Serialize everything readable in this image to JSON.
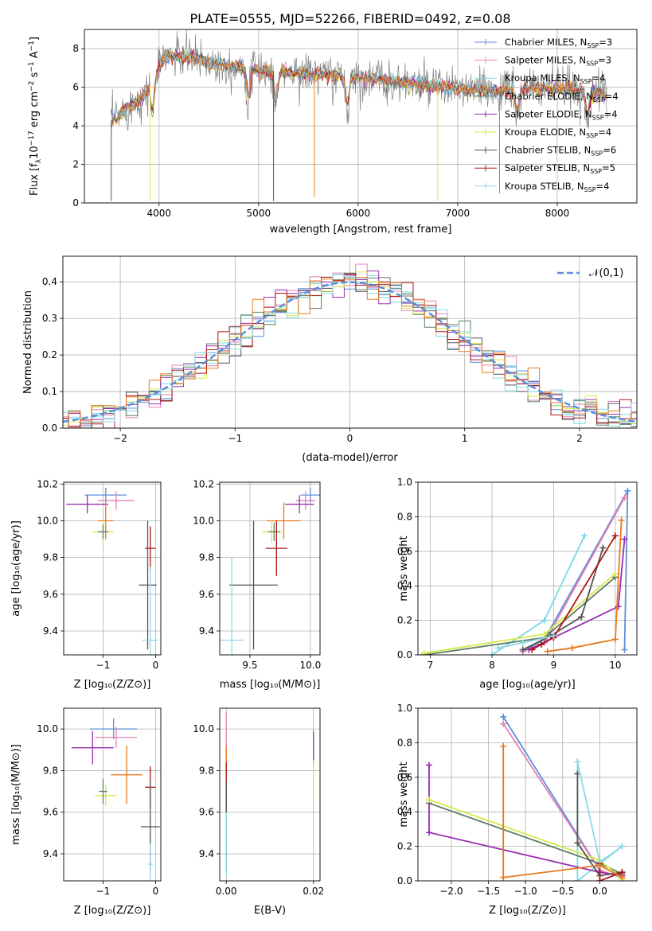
{
  "figure": {
    "title": "PLATE=0555, MJD=52266, FIBERID=0492, z=0.08"
  },
  "colors": {
    "Chabrier MILES": "#5b8fd8",
    "Salpeter MILES": "#e580b5",
    "Kroupa MILES": "#7ad9e3",
    "Chabrier ELODIE": "#5f7f62",
    "Salpeter ELODIE": "#9a2fb0",
    "Kroupa ELODIE": "#d6ea4a",
    "Chabrier STELIB": "#555555",
    "Salpeter STELIB": "#b01515",
    "Kroupa STELIB": "#8fd9e6",
    "Extra": "#e87a1c",
    "normal_curve": "#5b8fd8",
    "grid": "#b0b0b0"
  },
  "chart_data": [
    {
      "type": "line",
      "panel": "spectrum",
      "xlabel": "wavelength [Angstrom, rest frame]",
      "ylabel_pre": "Flux [f",
      "ylabel_sub": "λ",
      "ylabel_mid": "10",
      "ylabel_sup1": "−17",
      "ylabel_unit1": " erg cm",
      "ylabel_sup2": "−2",
      "ylabel_unit2": " s",
      "ylabel_sup3": "−1",
      "ylabel_unit3": " A",
      "ylabel_sup4": "−1",
      "ylabel_post": "]",
      "xlim": [
        3250,
        8800
      ],
      "ylim": [
        0,
        9
      ],
      "xticks": [
        4000,
        5000,
        6000,
        7000,
        8000
      ],
      "yticks": [
        0,
        2,
        4,
        6,
        8
      ],
      "continuum": [
        [
          3520,
          4.3
        ],
        [
          3700,
          5.0
        ],
        [
          3850,
          5.6
        ],
        [
          3950,
          6.4
        ],
        [
          4050,
          7.6
        ],
        [
          4300,
          7.6
        ],
        [
          4600,
          7.2
        ],
        [
          5000,
          6.9
        ],
        [
          5500,
          6.7
        ],
        [
          6000,
          6.5
        ],
        [
          6500,
          6.2
        ],
        [
          7000,
          5.9
        ],
        [
          7400,
          5.8
        ],
        [
          7800,
          6.0
        ],
        [
          8200,
          5.9
        ],
        [
          8500,
          5.6
        ]
      ],
      "dips": [
        [
          3935,
          1.5
        ],
        [
          4900,
          5.0
        ],
        [
          5175,
          4.7
        ],
        [
          5890,
          5.5
        ],
        [
          7600,
          5.3
        ],
        [
          8300,
          5.2
        ]
      ],
      "spikes": [
        [
          3520,
          0.1
        ],
        [
          3910,
          0.1
        ],
        [
          5150,
          0.1
        ],
        [
          5560,
          0.3
        ],
        [
          6800,
          0.1
        ],
        [
          7420,
          0.5
        ]
      ],
      "legend": [
        {
          "name": "Chabrier MILES",
          "sub": "SSP",
          "n": "=3"
        },
        {
          "name": "Salpeter MILES",
          "sub": "SSP",
          "n": "=3"
        },
        {
          "name": "Kroupa MILES",
          "sub": "SSP",
          "n": "=4"
        },
        {
          "name": "Chabrier ELODIE",
          "sub": "SSP",
          "n": "=4"
        },
        {
          "name": "Salpeter ELODIE",
          "sub": "SSP",
          "n": "=4"
        },
        {
          "name": "Kroupa ELODIE",
          "sub": "SSP",
          "n": "=4"
        },
        {
          "name": "Chabrier STELIB",
          "sub": "SSP",
          "n": "=6"
        },
        {
          "name": "Salpeter STELIB",
          "sub": "SSP",
          "n": "=5"
        },
        {
          "name": "Kroupa STELIB",
          "sub": "SSP",
          "n": "=4"
        }
      ]
    },
    {
      "type": "histogram",
      "panel": "residuals",
      "xlabel": "(data-model)/error",
      "ylabel": "Normed distribution",
      "xlim": [
        -2.5,
        2.5
      ],
      "ylim": [
        0,
        0.47
      ],
      "xticks": [
        -2,
        -1,
        0,
        1,
        2
      ],
      "yticks": [
        0.0,
        0.1,
        0.2,
        0.3,
        0.4
      ],
      "bin_width": 0.1,
      "legend": {
        "label": "𝒩(0,1)"
      }
    },
    {
      "type": "scatter",
      "panel": "Z-age",
      "xlabel": "Z [log₁₀(Z/Z⊙)]",
      "ylabel": "age  [log₁₀(age/yr)]",
      "xlim": [
        -1.75,
        0.1
      ],
      "ylim": [
        9.27,
        10.21
      ],
      "xticks": [
        -1,
        0
      ],
      "yticks": [
        9.4,
        9.6,
        9.8,
        10.0,
        10.2
      ],
      "points": [
        {
          "series": "Chabrier MILES",
          "x": -0.95,
          "y": 10.14,
          "xerr": 0.4,
          "yerr": 0.04
        },
        {
          "series": "Salpeter MILES",
          "x": -0.75,
          "y": 10.11,
          "xerr": 0.35,
          "yerr": 0.05
        },
        {
          "series": "Salpeter ELODIE",
          "x": -1.3,
          "y": 10.09,
          "xerr": 0.4,
          "yerr": 0.05
        },
        {
          "series": "Extra",
          "x": -0.95,
          "y": 10.0,
          "xerr": 0.15,
          "yerr": 0.1
        },
        {
          "series": "Kroupa ELODIE",
          "x": -1.0,
          "y": 9.94,
          "xerr": 0.2,
          "yerr": 0.06
        },
        {
          "series": "Chabrier ELODIE",
          "x": -1.0,
          "y": 9.94,
          "xerr": 0.1,
          "yerr": 0.04
        },
        {
          "series": "Salpeter STELIB",
          "x": -0.1,
          "y": 9.85,
          "xerr": 0.1,
          "yerr": 0.12
        },
        {
          "series": "Chabrier STELIB",
          "x": -0.15,
          "y": 9.65,
          "xerr": 0.17,
          "yerr": 0.35
        },
        {
          "series": "Kroupa STELIB",
          "x": -0.1,
          "y": 9.35,
          "xerr": 0.15,
          "yerr": 0.4
        }
      ]
    },
    {
      "type": "scatter",
      "panel": "mass-age",
      "xlabel": "mass [log₁₀(M/M⊙)]",
      "ylabel": "",
      "xlim": [
        9.25,
        10.08
      ],
      "ylim": [
        9.27,
        10.21
      ],
      "xticks": [
        9.5,
        10.0
      ],
      "yticks": [
        9.4,
        9.6,
        9.8,
        10.0,
        10.2
      ],
      "points": [
        {
          "series": "Chabrier MILES",
          "x": 10.0,
          "y": 10.14,
          "xerr": 0.08,
          "yerr": 0.04
        },
        {
          "series": "Salpeter MILES",
          "x": 9.96,
          "y": 10.11,
          "xerr": 0.08,
          "yerr": 0.05
        },
        {
          "series": "Salpeter ELODIE",
          "x": 9.91,
          "y": 10.09,
          "xerr": 0.12,
          "yerr": 0.05
        },
        {
          "series": "Extra",
          "x": 9.78,
          "y": 10.0,
          "xerr": 0.14,
          "yerr": 0.1
        },
        {
          "series": "Kroupa ELODIE",
          "x": 9.68,
          "y": 9.94,
          "xerr": 0.08,
          "yerr": 0.06
        },
        {
          "series": "Chabrier ELODIE",
          "x": 9.7,
          "y": 9.94,
          "xerr": 0.05,
          "yerr": 0.05
        },
        {
          "series": "Salpeter STELIB",
          "x": 9.72,
          "y": 9.85,
          "xerr": 0.09,
          "yerr": 0.15
        },
        {
          "series": "Chabrier STELIB",
          "x": 9.53,
          "y": 9.65,
          "xerr": 0.2,
          "yerr": 0.35
        },
        {
          "series": "Kroupa STELIB",
          "x": 9.35,
          "y": 9.35,
          "xerr": 0.1,
          "yerr": 0.45
        }
      ]
    },
    {
      "type": "line",
      "panel": "age-weight",
      "xlabel": "age  [log₁₀(age/yr)]",
      "ylabel": "mass weight",
      "xlim": [
        6.8,
        10.35
      ],
      "ylim": [
        0,
        1.0
      ],
      "xticks": [
        7,
        8,
        9,
        10
      ],
      "yticks": [
        0.0,
        0.2,
        0.4,
        0.6,
        0.8,
        1.0
      ],
      "series": [
        {
          "name": "Chabrier MILES",
          "x": [
            8.5,
            8.85,
            10.2,
            10.15
          ],
          "y": [
            0.02,
            0.09,
            0.95,
            0.03
          ]
        },
        {
          "name": "Salpeter MILES",
          "x": [
            8.5,
            8.85,
            10.15
          ],
          "y": [
            0.02,
            0.07,
            0.91
          ]
        },
        {
          "name": "Kroupa MILES",
          "x": [
            8.0,
            8.85,
            9.5
          ],
          "y": [
            0.0,
            0.2,
            0.69
          ]
        },
        {
          "name": "Chabrier ELODIE",
          "x": [
            6.9,
            8.85,
            10.0
          ],
          "y": [
            0.0,
            0.1,
            0.45
          ]
        },
        {
          "name": "Salpeter ELODIE",
          "x": [
            8.6,
            9.0,
            10.05,
            10.15
          ],
          "y": [
            0.03,
            0.1,
            0.28,
            0.67
          ]
        },
        {
          "name": "Kroupa ELODIE",
          "x": [
            6.9,
            8.85,
            10.0
          ],
          "y": [
            0.01,
            0.12,
            0.47
          ]
        },
        {
          "name": "Chabrier STELIB",
          "x": [
            8.5,
            8.95,
            9.45,
            9.8
          ],
          "y": [
            0.03,
            0.11,
            0.22,
            0.62
          ]
        },
        {
          "name": "Salpeter STELIB",
          "x": [
            8.65,
            8.8,
            9.0,
            10.0
          ],
          "y": [
            0.03,
            0.06,
            0.1,
            0.69
          ]
        },
        {
          "name": "Kroupa STELIB",
          "x": [
            8.1,
            8.5,
            9.0
          ],
          "y": [
            0.04,
            0.07,
            0.11
          ]
        },
        {
          "name": "Extra",
          "x": [
            8.9,
            9.3,
            10.0,
            10.1
          ],
          "y": [
            0.02,
            0.04,
            0.09,
            0.78
          ]
        }
      ]
    },
    {
      "type": "scatter",
      "panel": "Z-mass",
      "xlabel": "Z [log₁₀(Z/Z⊙)]",
      "ylabel": "mass [log₁₀(M/M⊙)]",
      "xlim": [
        -1.75,
        0.1
      ],
      "ylim": [
        9.27,
        10.1
      ],
      "xticks": [
        -1,
        0
      ],
      "yticks": [
        9.4,
        9.6,
        9.8,
        10.0
      ],
      "points": [
        {
          "series": "Chabrier MILES",
          "x": -0.8,
          "y": 10.0,
          "xerr": 0.45,
          "yerr": 0.05
        },
        {
          "series": "Salpeter MILES",
          "x": -0.75,
          "y": 9.96,
          "xerr": 0.4,
          "yerr": 0.05
        },
        {
          "series": "Salpeter ELODIE",
          "x": -1.2,
          "y": 9.91,
          "xerr": 0.4,
          "yerr": 0.08
        },
        {
          "series": "Extra",
          "x": -0.55,
          "y": 9.78,
          "xerr": 0.3,
          "yerr": 0.14
        },
        {
          "series": "Kroupa ELODIE",
          "x": -0.95,
          "y": 9.68,
          "xerr": 0.2,
          "yerr": 0.05
        },
        {
          "series": "Chabrier ELODIE",
          "x": -1.0,
          "y": 9.7,
          "xerr": 0.08,
          "yerr": 0.06
        },
        {
          "series": "Salpeter STELIB",
          "x": -0.1,
          "y": 9.72,
          "xerr": 0.1,
          "yerr": 0.1
        },
        {
          "series": "Chabrier STELIB",
          "x": -0.1,
          "y": 9.53,
          "xerr": 0.18,
          "yerr": 0.22
        },
        {
          "series": "Kroupa STELIB",
          "x": -0.1,
          "y": 9.35,
          "xerr": 0.05,
          "yerr": 0.1
        }
      ]
    },
    {
      "type": "scatter",
      "panel": "EBV-mass",
      "xlabel": "E(B-V)",
      "ylabel": "",
      "xlim": [
        -0.0015,
        0.0215
      ],
      "ylim": [
        9.27,
        10.1
      ],
      "xticks": [
        0.0,
        0.02
      ],
      "xticklabels": [
        "0.00",
        "0.02"
      ],
      "yticks": [
        9.4,
        9.6,
        9.8,
        10.0
      ],
      "points": [
        {
          "series": "Salpeter MILES",
          "x": 0.0,
          "y": 9.96,
          "xerr": 0,
          "yerr": 0.12
        },
        {
          "series": "Extra",
          "x": 0.0,
          "y": 9.78,
          "xerr": 0,
          "yerr": 0.14
        },
        {
          "series": "Salpeter STELIB",
          "x": 0.0,
          "y": 9.72,
          "xerr": 0,
          "yerr": 0.12
        },
        {
          "series": "Chabrier STELIB",
          "x": 0.0,
          "y": 9.53,
          "xerr": 0,
          "yerr": 0.22
        },
        {
          "series": "Kroupa STELIB",
          "x": 0.0,
          "y": 9.45,
          "xerr": 0,
          "yerr": 0.15
        },
        {
          "series": "Salpeter ELODIE",
          "x": 0.02,
          "y": 9.91,
          "xerr": 0,
          "yerr": 0.08
        },
        {
          "series": "Kroupa ELODIE",
          "x": 0.02,
          "y": 9.75,
          "xerr": 0,
          "yerr": 0.1
        }
      ]
    },
    {
      "type": "line",
      "panel": "Z-weight",
      "xlabel": "Z [log₁₀(Z/Z⊙)]",
      "ylabel": "mass weight",
      "xlim": [
        -2.45,
        0.5
      ],
      "ylim": [
        0,
        1.0
      ],
      "xticks": [
        -2.0,
        -1.5,
        -1.0,
        -0.5,
        0.0
      ],
      "yticks": [
        0.0,
        0.2,
        0.4,
        0.6,
        0.8,
        1.0
      ],
      "series": [
        {
          "name": "Chabrier MILES",
          "x": [
            -1.3,
            0.0,
            0.3
          ],
          "y": [
            0.95,
            0.06,
            0.02
          ]
        },
        {
          "name": "Salpeter MILES",
          "x": [
            -1.3,
            0.0,
            0.3
          ],
          "y": [
            0.91,
            0.06,
            0.02
          ]
        },
        {
          "name": "Kroupa MILES",
          "x": [
            -0.3,
            -0.3,
            0.0,
            0.3
          ],
          "y": [
            0.69,
            0.0,
            0.1,
            0.2
          ]
        },
        {
          "name": "Chabrier ELODIE",
          "x": [
            -2.3,
            0.0,
            0.3
          ],
          "y": [
            0.45,
            0.1,
            0.04
          ]
        },
        {
          "name": "Salpeter ELODIE",
          "x": [
            -2.3,
            -2.3,
            0.0,
            0.3
          ],
          "y": [
            0.67,
            0.28,
            0.05,
            0.03
          ]
        },
        {
          "name": "Kroupa ELODIE",
          "x": [
            -2.3,
            0.0,
            0.3
          ],
          "y": [
            0.47,
            0.12,
            0.01
          ]
        },
        {
          "name": "Chabrier STELIB",
          "x": [
            -0.3,
            -0.3,
            0.0,
            0.3
          ],
          "y": [
            0.62,
            0.22,
            0.03,
            0.05
          ]
        },
        {
          "name": "Salpeter STELIB",
          "x": [
            0.0,
            0.0,
            0.3
          ],
          "y": [
            0.1,
            0.0,
            0.05
          ]
        },
        {
          "name": "Kroupa STELIB",
          "x": [
            -0.3,
            0.0,
            0.3
          ],
          "y": [
            0.69,
            0.11,
            0.2
          ]
        },
        {
          "name": "Extra",
          "x": [
            -1.3,
            -1.3,
            0.0,
            0.3
          ],
          "y": [
            0.78,
            0.02,
            0.09,
            0.02
          ]
        }
      ]
    }
  ]
}
